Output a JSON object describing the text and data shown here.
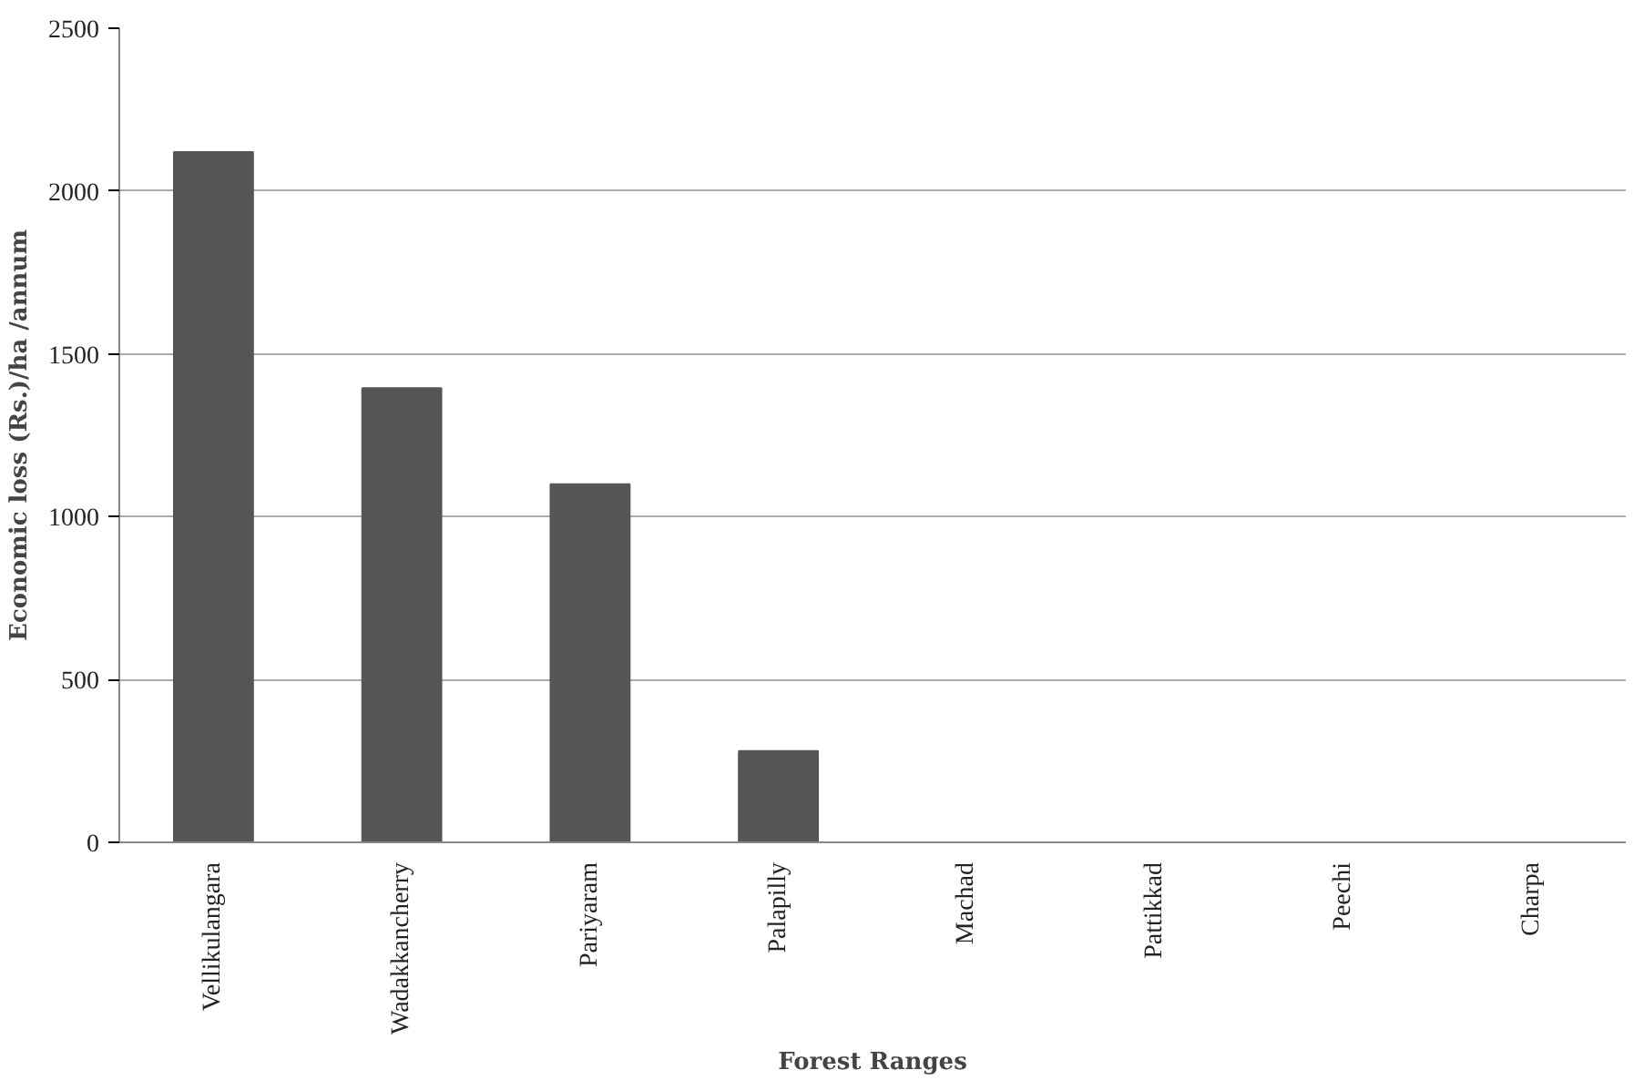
{
  "chart_data": {
    "type": "bar",
    "xlabel": "Forest Ranges",
    "ylabel": "Economic loss (Rs.)/ha /annum",
    "categories": [
      "Vellikulangara",
      "Wadakkancherry",
      "Pariyaram",
      "Palapilly",
      "Machad",
      "Pattikkad",
      "Peechi",
      "Charpa"
    ],
    "values": [
      2120,
      1395,
      1100,
      280,
      0,
      0,
      0,
      0
    ],
    "color": "#555555",
    "ylim": [
      0,
      2500
    ],
    "yticks": [
      0,
      500,
      1000,
      1500,
      2000,
      2500
    ],
    "grid": "y"
  }
}
